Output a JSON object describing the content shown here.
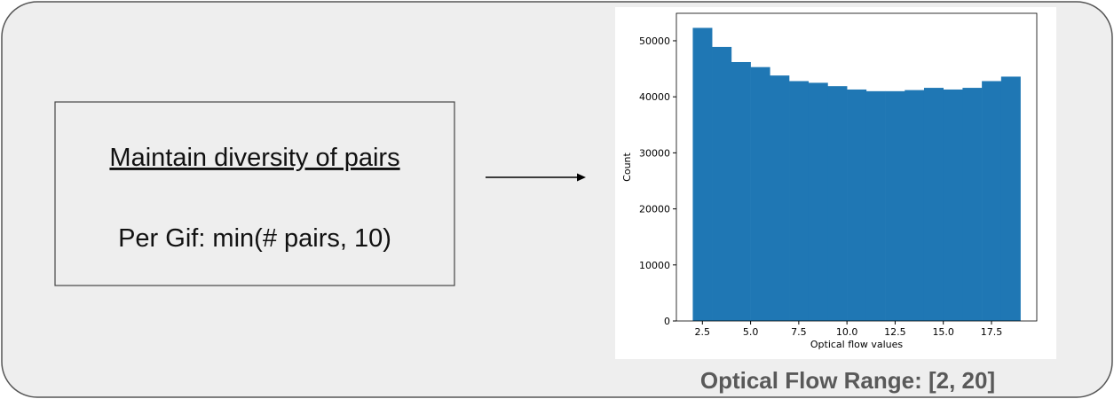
{
  "box": {
    "title": "Maintain diversity of pairs",
    "text": "Per Gif: min(# pairs, 10)"
  },
  "caption": "Optical Flow Range: [2, 20]",
  "chart_data": {
    "type": "histogram",
    "xlabel": "Optical flow values",
    "ylabel": "Count",
    "bins": [
      2,
      3,
      4,
      5,
      6,
      7,
      8,
      9,
      10,
      11,
      12,
      13,
      14,
      15,
      16,
      17,
      18,
      19
    ],
    "values": [
      52300,
      48900,
      46200,
      45300,
      43800,
      42800,
      42500,
      41900,
      41300,
      41000,
      41000,
      41200,
      41600,
      41300,
      41600,
      42800,
      43600
    ],
    "color": "#1f77b4",
    "xlim": [
      1.15,
      19.85
    ],
    "ylim": [
      0,
      54900
    ],
    "xticks": [
      {
        "value": 2.5,
        "label": "2.5"
      },
      {
        "value": 5,
        "label": "5.0"
      },
      {
        "value": 7.5,
        "label": "7.5"
      },
      {
        "value": 10,
        "label": "10.0"
      },
      {
        "value": 12.5,
        "label": "12.5"
      },
      {
        "value": 15,
        "label": "15.0"
      },
      {
        "value": 17.5,
        "label": "17.5"
      }
    ],
    "yticks": [
      0,
      10000,
      20000,
      30000,
      40000,
      50000
    ]
  }
}
